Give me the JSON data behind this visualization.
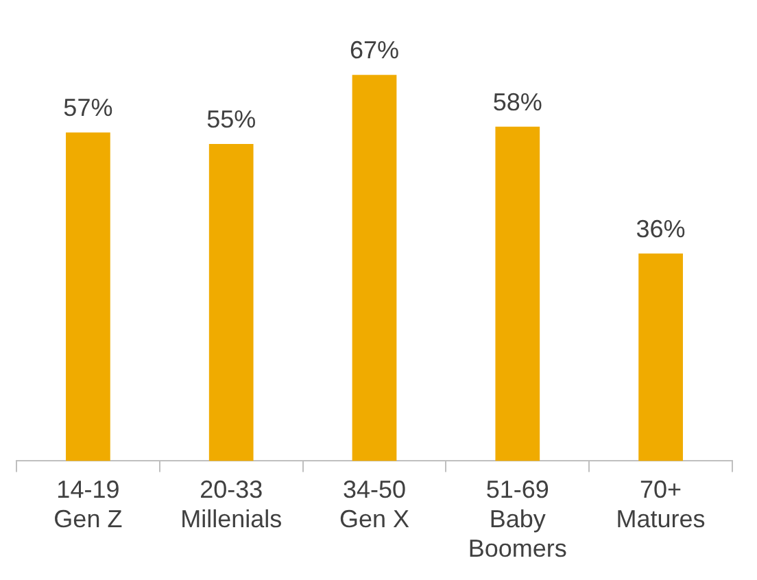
{
  "chart_data": {
    "type": "bar",
    "categories": [
      "14-19\nGen Z",
      "20-33\nMillenials",
      "34-50\nGen X",
      "51-69\nBaby\nBoomers",
      "70+\nMatures"
    ],
    "values": [
      57,
      55,
      67,
      58,
      36
    ],
    "value_labels": [
      "57%",
      "55%",
      "67%",
      "58%",
      "36%"
    ],
    "color": "#f0ab00",
    "grid": false,
    "legend": false,
    "tick_labels": "x"
  }
}
